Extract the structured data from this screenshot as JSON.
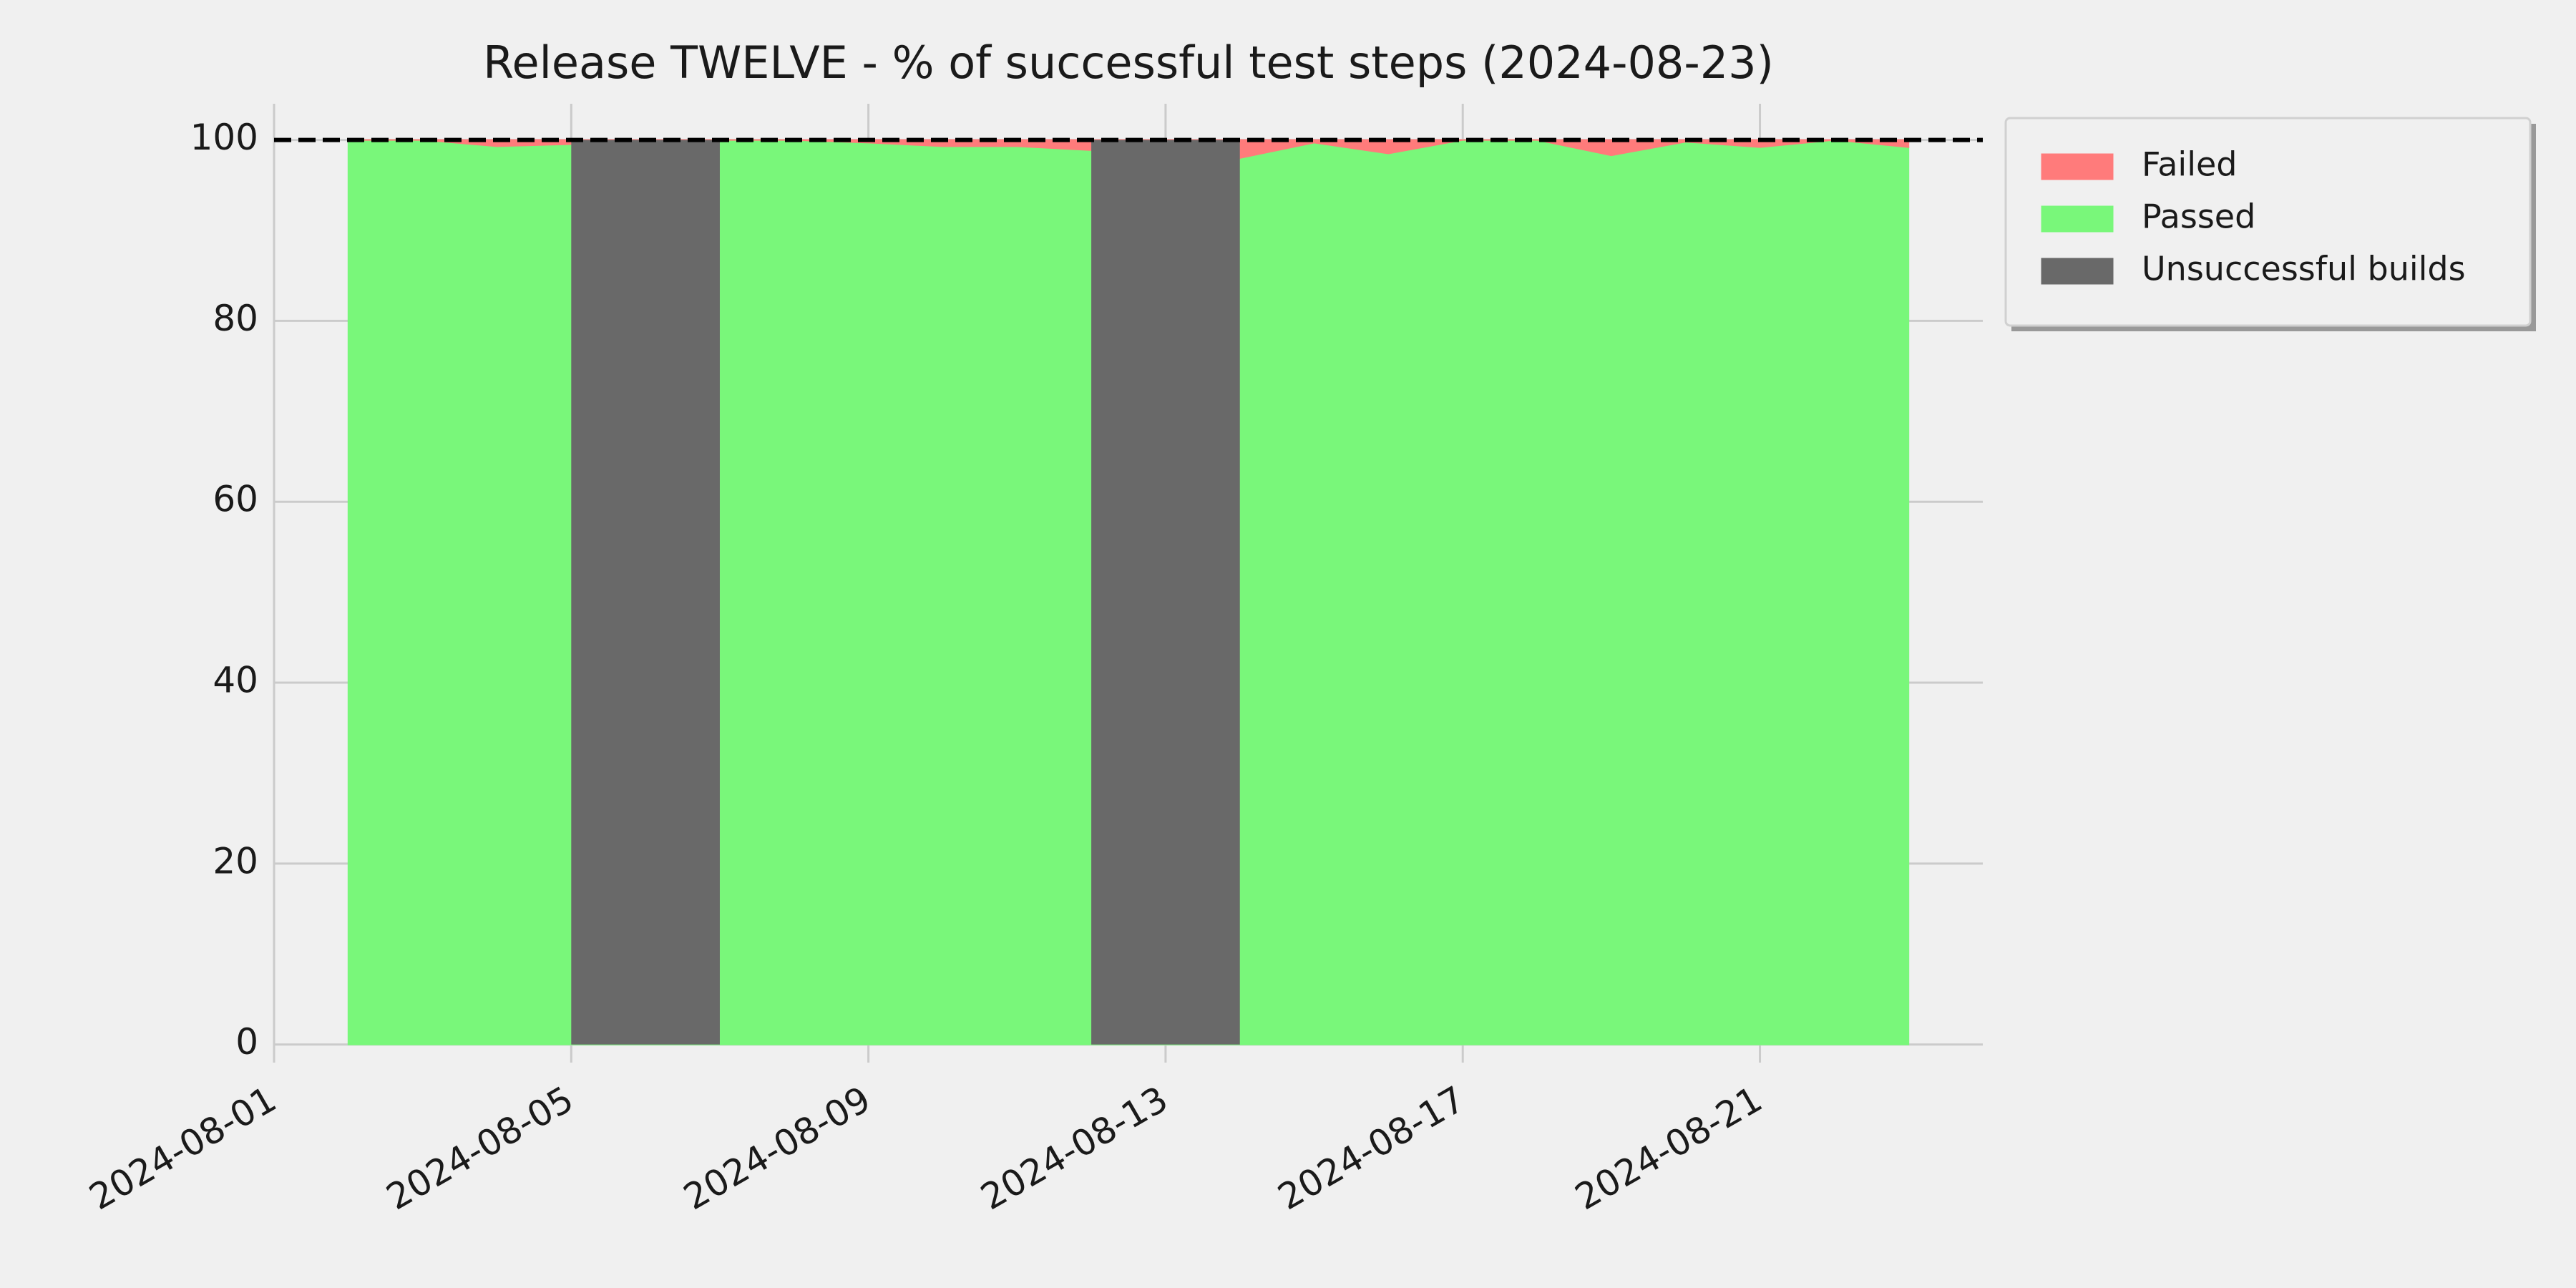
{
  "chart_data": {
    "type": "stacked-area",
    "title": "Release TWELVE - % of successful test steps (2024-08-23)",
    "x": [
      "2024-08-02",
      "2024-08-03",
      "2024-08-04",
      "2024-08-07",
      "2024-08-08",
      "2024-08-09",
      "2024-08-10",
      "2024-08-11",
      "2024-08-14",
      "2024-08-15",
      "2024-08-16",
      "2024-08-17",
      "2024-08-18",
      "2024-08-19",
      "2024-08-20",
      "2024-08-21",
      "2024-08-22",
      "2024-08-23"
    ],
    "series": [
      {
        "name": "Failed",
        "color": "#ff7b7b",
        "values": [
          0,
          0,
          0.7,
          0,
          0,
          0.3,
          0.7,
          0.7,
          2,
          0.3,
          1.5,
          0,
          0,
          1.7,
          0.2,
          0.8,
          0,
          0.8
        ]
      },
      {
        "name": "Passed",
        "color": "#79f77a",
        "values": [
          100,
          100,
          99.3,
          100,
          100,
          99.7,
          99.3,
          99.3,
          98,
          99.7,
          98.5,
          100,
          100,
          98.3,
          99.8,
          99.2,
          100,
          99.2
        ]
      }
    ],
    "bars": {
      "name": "Unsuccessful builds",
      "color": "#696969",
      "x": [
        "2024-08-05",
        "2024-08-12"
      ],
      "x_end": [
        "2024-08-07",
        "2024-08-14"
      ],
      "values": [
        100,
        100
      ]
    },
    "hline": 100,
    "xlim": [
      "2024-08-01",
      "2024-08-24"
    ],
    "xticks": [
      "2024-08-01",
      "2024-08-05",
      "2024-08-09",
      "2024-08-13",
      "2024-08-17",
      "2024-08-21"
    ],
    "ylim": [
      -2,
      104
    ],
    "yticks": [
      0,
      20,
      40,
      60,
      80,
      100
    ],
    "grid": true,
    "legend": "upper right outside"
  }
}
